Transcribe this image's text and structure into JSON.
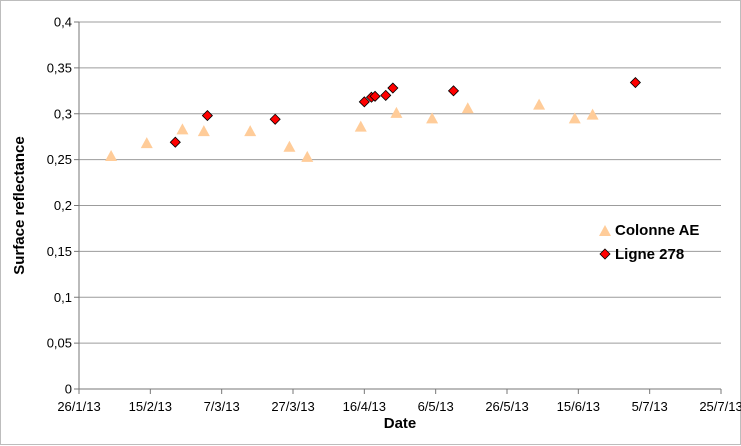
{
  "chart_data": {
    "type": "scatter",
    "xlabel": "Date",
    "ylabel": "Surface reflectance",
    "xlim": [
      "2013-01-26",
      "2013-07-25"
    ],
    "ylim": [
      0,
      0.4
    ],
    "x_ticks": [
      "26/1/13",
      "15/2/13",
      "7/3/13",
      "27/3/13",
      "16/4/13",
      "6/5/13",
      "26/5/13",
      "15/6/13",
      "5/7/13",
      "25/7/13"
    ],
    "y_ticks": [
      "0",
      "0,05",
      "0,1",
      "0,15",
      "0,2",
      "0,25",
      "0,3",
      "0,35",
      "0,4"
    ],
    "y_tick_values": [
      0,
      0.05,
      0.1,
      0.15,
      0.2,
      0.25,
      0.3,
      0.35,
      0.4
    ],
    "grid": "horizontal",
    "legend_position": "right",
    "series": [
      {
        "name": "Colonne AE",
        "marker": "triangle",
        "color": "#FFCC99",
        "x": [
          "2013-02-04",
          "2013-02-14",
          "2013-02-24",
          "2013-03-02",
          "2013-03-15",
          "2013-03-26",
          "2013-03-31",
          "2013-04-15",
          "2013-04-25",
          "2013-05-05",
          "2013-05-15",
          "2013-06-04",
          "2013-06-14",
          "2013-06-19"
        ],
        "y": [
          0.254,
          0.268,
          0.283,
          0.281,
          0.281,
          0.264,
          0.253,
          0.286,
          0.301,
          0.295,
          0.306,
          0.31,
          0.295,
          0.299
        ]
      },
      {
        "name": "Ligne 278",
        "marker": "diamond",
        "color": "#FF0000",
        "x": [
          "2013-02-22",
          "2013-03-03",
          "2013-03-22",
          "2013-04-16",
          "2013-04-18",
          "2013-04-19",
          "2013-04-22",
          "2013-04-24",
          "2013-05-11",
          "2013-07-01"
        ],
        "y": [
          0.269,
          0.298,
          0.294,
          0.313,
          0.318,
          0.319,
          0.32,
          0.328,
          0.325,
          0.334
        ]
      }
    ]
  }
}
